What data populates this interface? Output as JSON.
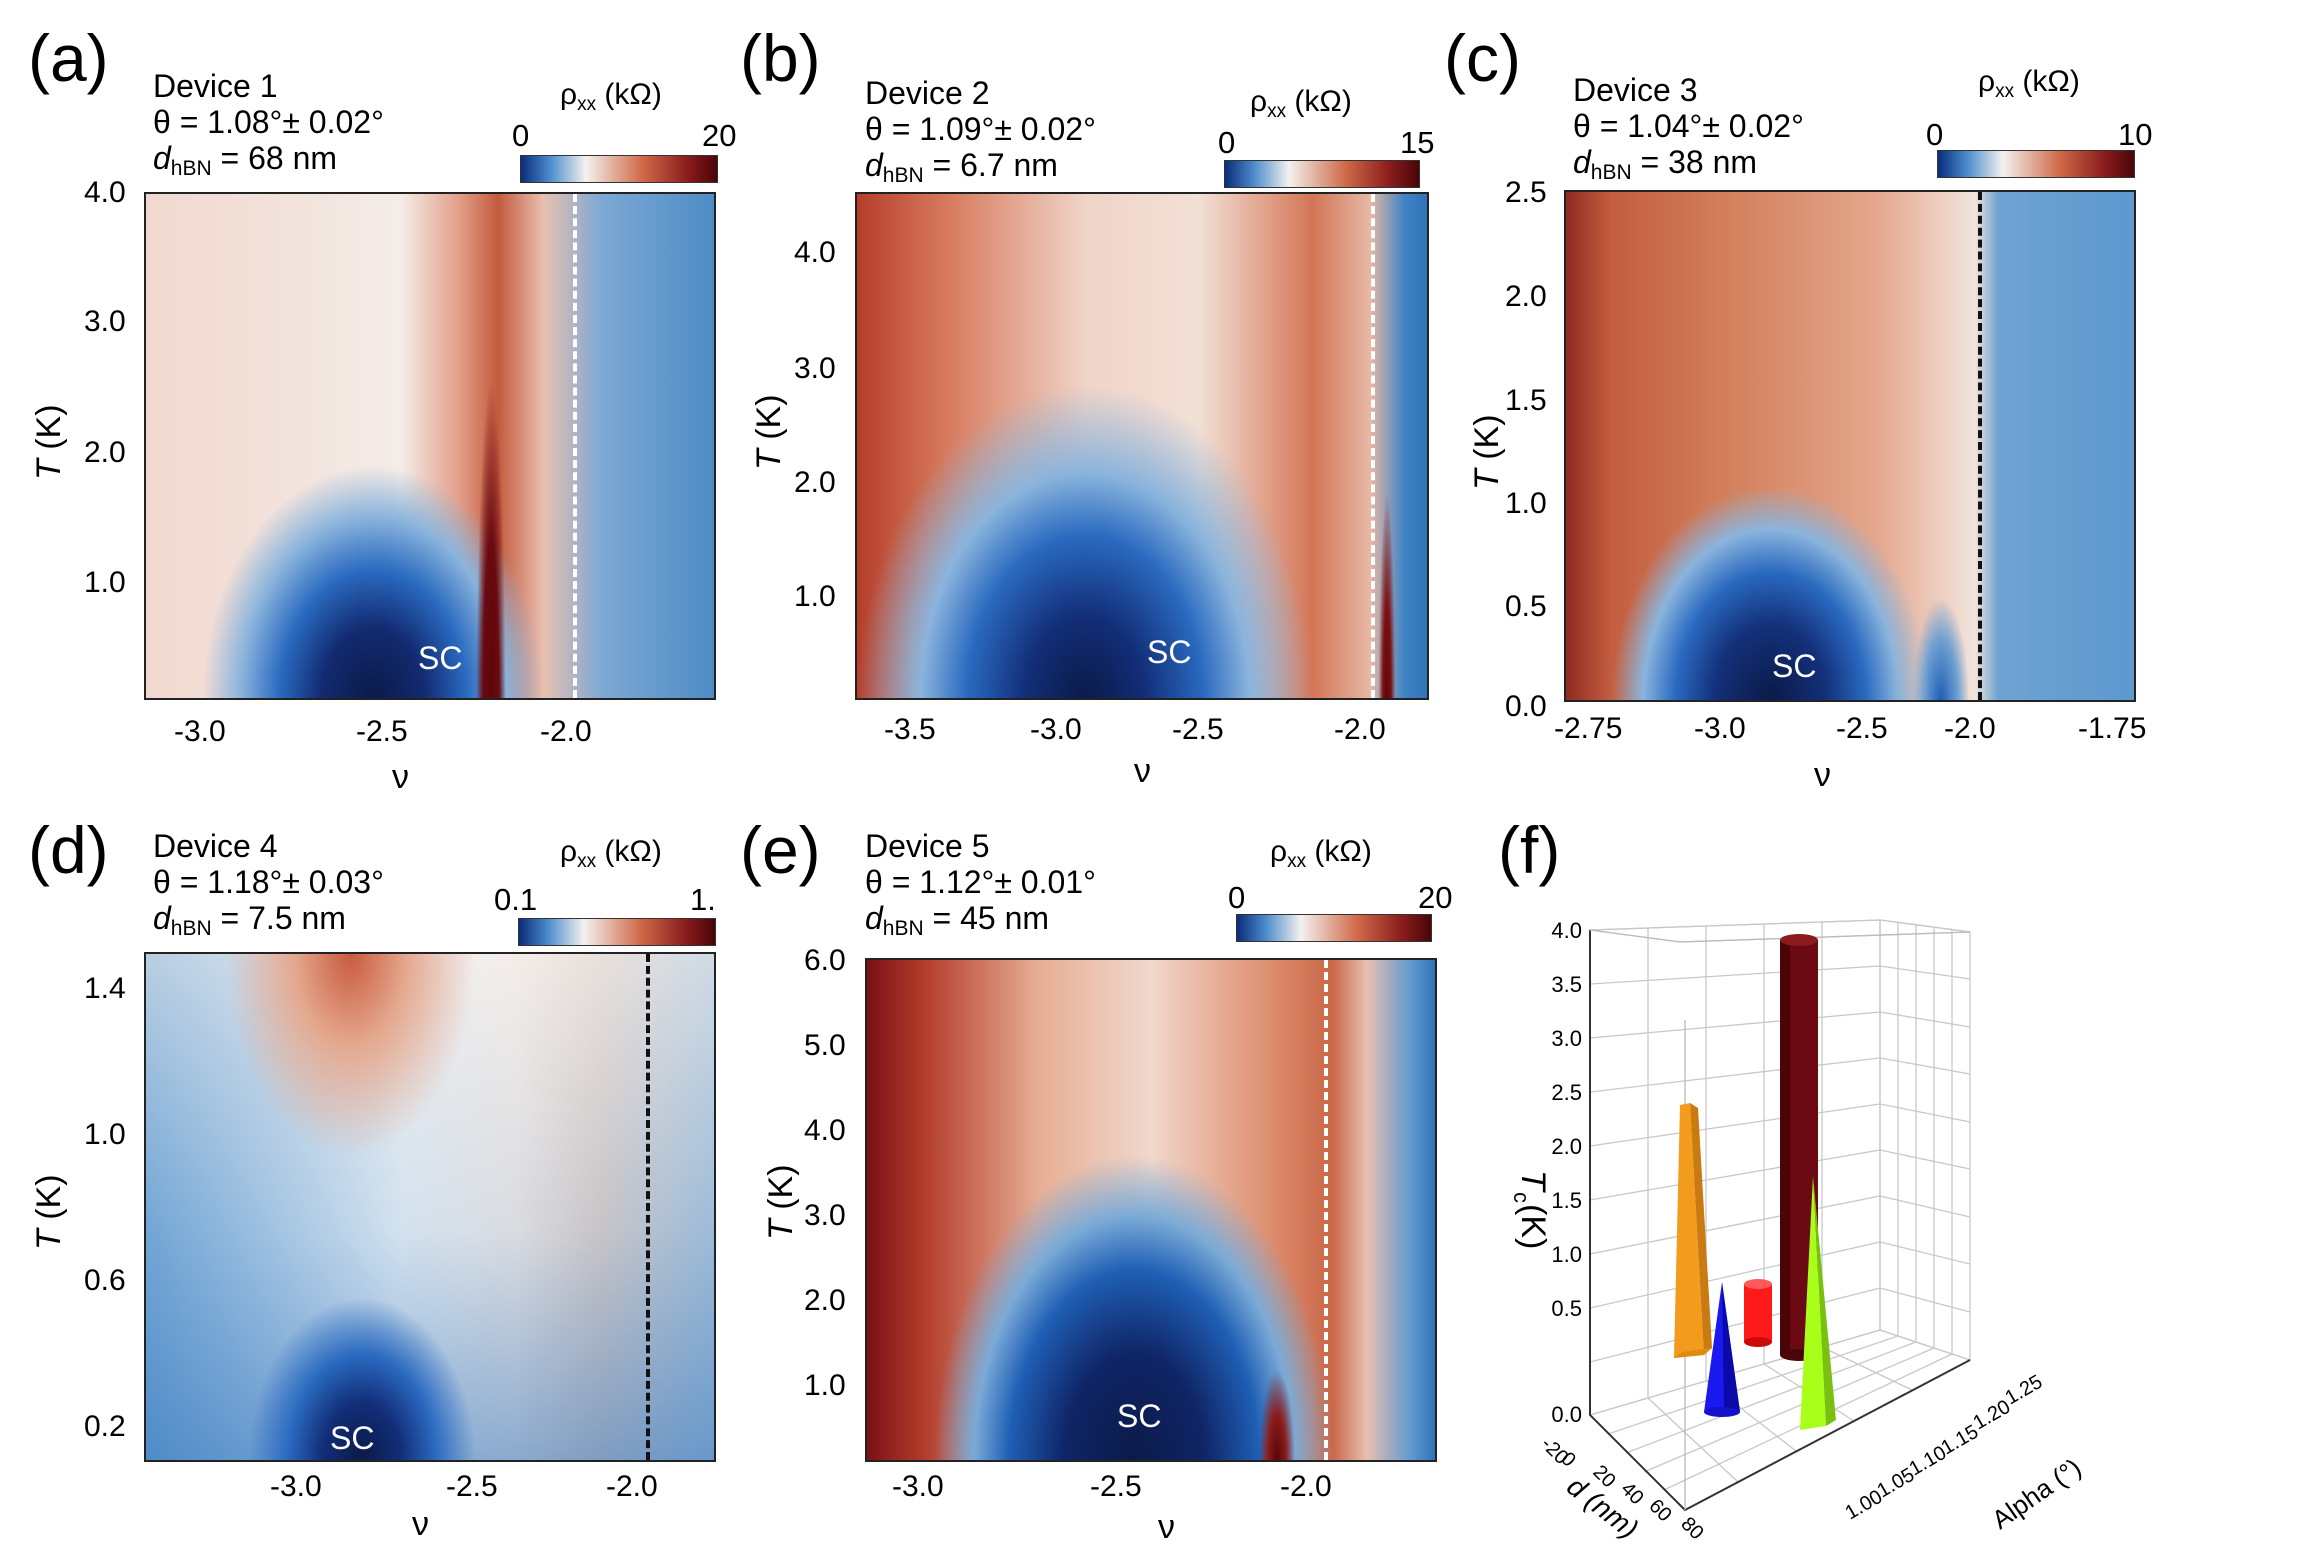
{
  "colors": {
    "blue_dark": "#0a1a4a",
    "blue": "#1f5fb5",
    "light_blue": "#8bb5dc",
    "white": "#f4f2f0",
    "red": "#c8563a",
    "dark_red": "#5a0a10"
  },
  "panels": [
    {
      "letter": "(a)",
      "device": "Device 1",
      "theta": "θ = 1.08°± 0.02°",
      "d_prefix": "d",
      "d_sub": "hBN",
      "d_value": " = 68 nm",
      "cb_title": "ρ",
      "cb_sub": "xx",
      "cb_unit": " (kΩ)",
      "cb_min": "0",
      "cb_max": "20",
      "yticks": [
        "4.0",
        "3.0",
        "2.0",
        "1.0"
      ],
      "xticks": [
        "-3.0",
        "-2.5",
        "-2.0"
      ],
      "ylabel_T": "T",
      "ylabel_unit": " (K)",
      "xlabel": "ν",
      "sc": "SC"
    },
    {
      "letter": "(b)",
      "device": "Device 2",
      "theta": "θ = 1.09°± 0.02°",
      "d_prefix": "d",
      "d_sub": "hBN",
      "d_value": " = 6.7 nm",
      "cb_title": "ρ",
      "cb_sub": "xx",
      "cb_unit": " (kΩ)",
      "cb_min": "0",
      "cb_max": "15",
      "yticks": [
        "4.0",
        "3.0",
        "2.0",
        "1.0"
      ],
      "xticks": [
        "-3.5",
        "-3.0",
        "-2.5",
        "-2.0"
      ],
      "ylabel_T": "T",
      "ylabel_unit": " (K)",
      "xlabel": "ν",
      "sc": "SC"
    },
    {
      "letter": "(c)",
      "device": "Device 3",
      "theta": "θ = 1.04°± 0.02°",
      "d_prefix": "d",
      "d_sub": "hBN",
      "d_value": " = 38 nm",
      "cb_title": "ρ",
      "cb_sub": "xx",
      "cb_unit": " (kΩ)",
      "cb_min": "0",
      "cb_max": "10",
      "yticks": [
        "2.5",
        "2.0",
        "1.5",
        "1.0",
        "0.5",
        "0.0"
      ],
      "xticks": [
        "-2.75",
        "-3.0",
        "-2.5",
        "-2.0",
        "-1.75"
      ],
      "ylabel_T": "T",
      "ylabel_unit": " (K)",
      "xlabel": "ν",
      "sc": "SC"
    },
    {
      "letter": "(d)",
      "device": "Device 4",
      "theta": "θ = 1.18°± 0.03°",
      "d_prefix": "d",
      "d_sub": "hBN",
      "d_value": " = 7.5 nm",
      "cb_title": "ρ",
      "cb_sub": "xx",
      "cb_unit": " (kΩ)",
      "cb_min": "0.1",
      "cb_max": "1.",
      "yticks": [
        "1.4",
        "1.0",
        "0.6",
        "0.2"
      ],
      "xticks": [
        "-3.0",
        "-2.5",
        "-2.0"
      ],
      "ylabel_T": "T",
      "ylabel_unit": " (K)",
      "xlabel": "ν",
      "sc": "SC"
    },
    {
      "letter": "(e)",
      "device": "Device 5",
      "theta": "θ = 1.12°± 0.01°",
      "d_prefix": "d",
      "d_sub": "hBN",
      "d_value": " = 45 nm",
      "cb_title": "ρ",
      "cb_sub": "xx",
      "cb_unit": " (kΩ)",
      "cb_min": "0",
      "cb_max": "20",
      "yticks": [
        "6.0",
        "5.0",
        "4.0",
        "3.0",
        "2.0",
        "1.0"
      ],
      "xticks": [
        "-3.0",
        "-2.5",
        "-2.0"
      ],
      "ylabel_T": "T",
      "ylabel_unit": " (K)",
      "xlabel": "ν",
      "sc": "SC"
    }
  ],
  "panel_f": {
    "letter": "(f)",
    "zlabel": "T",
    "zlabel_sub": "c",
    "zlabel_unit": " (K)",
    "xlabel": "d (nm)",
    "ylabel": "Alpha (°)",
    "zticks": [
      "4.0",
      "3.5",
      "3.0",
      "2.5",
      "2.0",
      "1.5",
      "1.0",
      "0.5",
      "0.0"
    ],
    "dticks": [
      "-20",
      "0",
      "20",
      "40",
      "60",
      "80"
    ],
    "aticks": [
      "1.00",
      "1.05",
      "1.10",
      "1.15",
      "1.20",
      "1.25"
    ]
  },
  "chart_data": [
    {
      "type": "heatmap",
      "title": "Device 1",
      "xlabel": "ν",
      "ylabel": "T (K)",
      "xlim": [
        -3.2,
        -1.6
      ],
      "ylim": [
        0.1,
        4.0
      ],
      "colorbar_range_kohm": [
        0,
        20
      ],
      "vline_nu": -2.0,
      "annotation": "SC"
    },
    {
      "type": "heatmap",
      "title": "Device 2",
      "xlabel": "ν",
      "ylabel": "T (K)",
      "xlim": [
        -3.7,
        -1.85
      ],
      "ylim": [
        0.1,
        4.5
      ],
      "colorbar_range_kohm": [
        0,
        15
      ],
      "vline_nu": -2.0,
      "annotation": "SC"
    },
    {
      "type": "heatmap",
      "title": "Device 3",
      "xlabel": "ν",
      "ylabel": "T (K)",
      "ylim": [
        0.0,
        2.5
      ],
      "colorbar_range_kohm": [
        0,
        10
      ],
      "vline_nu": -2.0,
      "annotation": "SC"
    },
    {
      "type": "heatmap",
      "title": "Device 4",
      "xlabel": "ν",
      "ylabel": "T (K)",
      "xlim": [
        -3.45,
        -1.8
      ],
      "ylim": [
        0.1,
        1.5
      ],
      "colorbar_range_kohm": [
        0.1,
        1.0
      ],
      "vline_nu": -2.0,
      "annotation": "SC"
    },
    {
      "type": "heatmap",
      "title": "Device 5",
      "xlabel": "ν",
      "ylabel": "T (K)",
      "xlim": [
        -3.2,
        -1.7
      ],
      "ylim": [
        0.1,
        6.0
      ],
      "colorbar_range_kohm": [
        0,
        20
      ],
      "vline_nu": -2.0,
      "annotation": "SC"
    },
    {
      "type": "bar",
      "xlabel": "d (nm)",
      "ylabel": "Alpha (°)",
      "zlabel": "Tc (K)",
      "zlim": [
        0,
        4.0
      ],
      "series": [
        {
          "d": 68,
          "alpha": 1.08,
          "tc": 3.9,
          "color": "#6b0a12",
          "shape": "cylinder"
        },
        {
          "d": 6.7,
          "alpha": 1.09,
          "tc": 2.4,
          "color": "#f29b1c",
          "shape": "pyramid"
        },
        {
          "d": 38,
          "alpha": 1.04,
          "tc": 1.2,
          "color": "#1a1af0",
          "shape": "cone"
        },
        {
          "d": 7.5,
          "alpha": 1.18,
          "tc": 0.7,
          "color": "#ff1a1a",
          "shape": "cylinder"
        },
        {
          "d": 45,
          "alpha": 1.12,
          "tc": 2.1,
          "color": "#aaff1a",
          "shape": "pyramid"
        }
      ]
    }
  ]
}
